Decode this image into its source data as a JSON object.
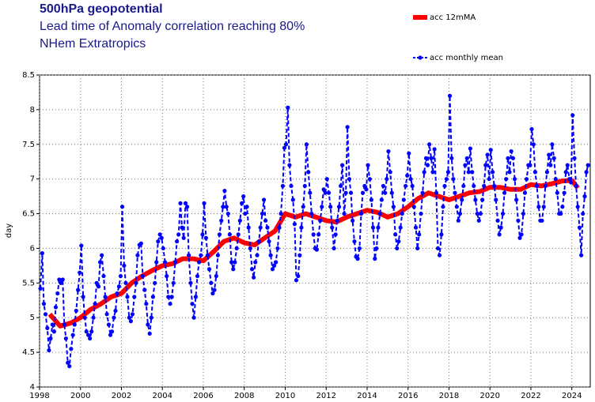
{
  "chart_data": {
    "type": "line",
    "title": "500hPa geopotential",
    "subtitle": [
      "Lead time of Anomaly correlation reaching 80%",
      "NHem Extratropics"
    ],
    "ylabel": "day",
    "xlim": [
      1998,
      2024.9
    ],
    "xticks": [
      1998,
      2000,
      2002,
      2004,
      2006,
      2008,
      2010,
      2012,
      2014,
      2016,
      2018,
      2020,
      2022,
      2024
    ],
    "ylim": [
      4,
      8.5
    ],
    "yticks": [
      4,
      4.5,
      5,
      5.5,
      6,
      6.5,
      7,
      7.5,
      8,
      8.5
    ],
    "grid": true,
    "series": [
      {
        "name": "acc 12mMA",
        "color": "#ff0000",
        "x": [
          1998.5,
          1999,
          1999.5,
          2000,
          2000.5,
          2001,
          2001.5,
          2002,
          2002.5,
          2003,
          2003.5,
          2004,
          2004.5,
          2005,
          2005.5,
          2006,
          2006.5,
          2007,
          2007.5,
          2008,
          2008.5,
          2009,
          2009.5,
          2010,
          2010.5,
          2011,
          2011.5,
          2012,
          2012.5,
          2013,
          2013.5,
          2014,
          2014.5,
          2015,
          2015.5,
          2016,
          2016.5,
          2017,
          2017.5,
          2018,
          2018.5,
          2019,
          2019.5,
          2020,
          2020.5,
          2021,
          2021.5,
          2022,
          2022.5,
          2023,
          2023.5,
          2024,
          2024.3
        ],
        "values": [
          5.05,
          4.88,
          4.92,
          5.0,
          5.12,
          5.2,
          5.3,
          5.35,
          5.5,
          5.6,
          5.68,
          5.75,
          5.78,
          5.85,
          5.85,
          5.82,
          5.95,
          6.1,
          6.15,
          6.08,
          6.05,
          6.15,
          6.25,
          6.5,
          6.45,
          6.5,
          6.45,
          6.4,
          6.38,
          6.45,
          6.5,
          6.55,
          6.52,
          6.45,
          6.5,
          6.6,
          6.72,
          6.8,
          6.75,
          6.7,
          6.75,
          6.8,
          6.82,
          6.88,
          6.88,
          6.85,
          6.85,
          6.92,
          6.9,
          6.93,
          6.97,
          6.98,
          6.87
        ]
      },
      {
        "name": "acc monthly mean",
        "color": "#0000ff",
        "x": [
          1998.04,
          1998.13,
          1998.21,
          1998.29,
          1998.38,
          1998.46,
          1998.54,
          1998.63,
          1998.71,
          1998.79,
          1998.88,
          1998.96,
          1999.04,
          1999.13,
          1999.21,
          1999.29,
          1999.38,
          1999.46,
          1999.54,
          1999.63,
          1999.71,
          1999.79,
          1999.88,
          1999.96,
          2000.04,
          2000.13,
          2000.21,
          2000.29,
          2000.38,
          2000.46,
          2000.54,
          2000.63,
          2000.71,
          2000.79,
          2000.88,
          2000.96,
          2001.04,
          2001.13,
          2001.21,
          2001.29,
          2001.38,
          2001.46,
          2001.54,
          2001.63,
          2001.71,
          2001.79,
          2001.88,
          2001.96,
          2002.04,
          2002.13,
          2002.21,
          2002.29,
          2002.38,
          2002.46,
          2002.54,
          2002.63,
          2002.71,
          2002.79,
          2002.88,
          2002.96,
          2003.04,
          2003.13,
          2003.21,
          2003.29,
          2003.38,
          2003.46,
          2003.54,
          2003.63,
          2003.71,
          2003.79,
          2003.88,
          2003.96,
          2004.04,
          2004.13,
          2004.21,
          2004.29,
          2004.38,
          2004.46,
          2004.54,
          2004.63,
          2004.71,
          2004.79,
          2004.88,
          2004.96,
          2005.04,
          2005.13,
          2005.21,
          2005.29,
          2005.38,
          2005.46,
          2005.54,
          2005.63,
          2005.71,
          2005.79,
          2005.88,
          2005.96,
          2006.04,
          2006.13,
          2006.21,
          2006.29,
          2006.38,
          2006.46,
          2006.54,
          2006.63,
          2006.71,
          2006.79,
          2006.88,
          2006.96,
          2007.04,
          2007.13,
          2007.21,
          2007.29,
          2007.38,
          2007.46,
          2007.54,
          2007.63,
          2007.71,
          2007.79,
          2007.88,
          2007.96,
          2008.04,
          2008.13,
          2008.21,
          2008.29,
          2008.38,
          2008.46,
          2008.54,
          2008.63,
          2008.71,
          2008.79,
          2008.88,
          2008.96,
          2009.04,
          2009.13,
          2009.21,
          2009.29,
          2009.38,
          2009.46,
          2009.54,
          2009.63,
          2009.71,
          2009.79,
          2009.88,
          2009.96,
          2010.04,
          2010.13,
          2010.21,
          2010.29,
          2010.38,
          2010.46,
          2010.54,
          2010.63,
          2010.71,
          2010.79,
          2010.88,
          2010.96,
          2011.04,
          2011.13,
          2011.21,
          2011.29,
          2011.38,
          2011.46,
          2011.54,
          2011.63,
          2011.71,
          2011.79,
          2011.88,
          2011.96,
          2012.04,
          2012.13,
          2012.21,
          2012.29,
          2012.38,
          2012.46,
          2012.54,
          2012.63,
          2012.71,
          2012.79,
          2012.88,
          2012.96,
          2013.04,
          2013.13,
          2013.21,
          2013.29,
          2013.38,
          2013.46,
          2013.54,
          2013.63,
          2013.71,
          2013.79,
          2013.88,
          2013.96,
          2014.04,
          2014.13,
          2014.21,
          2014.29,
          2014.38,
          2014.46,
          2014.54,
          2014.63,
          2014.71,
          2014.79,
          2014.88,
          2014.96,
          2015.04,
          2015.13,
          2015.21,
          2015.29,
          2015.38,
          2015.46,
          2015.54,
          2015.63,
          2015.71,
          2015.79,
          2015.88,
          2015.96,
          2016.04,
          2016.13,
          2016.21,
          2016.29,
          2016.38,
          2016.46,
          2016.54,
          2016.63,
          2016.71,
          2016.79,
          2016.88,
          2016.96,
          2017.04,
          2017.13,
          2017.21,
          2017.29,
          2017.38,
          2017.46,
          2017.54,
          2017.63,
          2017.71,
          2017.79,
          2017.88,
          2017.96,
          2018.04,
          2018.13,
          2018.21,
          2018.29,
          2018.38,
          2018.46,
          2018.54,
          2018.63,
          2018.71,
          2018.79,
          2018.88,
          2018.96,
          2019.04,
          2019.13,
          2019.21,
          2019.29,
          2019.38,
          2019.46,
          2019.54,
          2019.63,
          2019.71,
          2019.79,
          2019.88,
          2019.96,
          2020.04,
          2020.13,
          2020.21,
          2020.29,
          2020.38,
          2020.46,
          2020.54,
          2020.63,
          2020.71,
          2020.79,
          2020.88,
          2020.96,
          2021.04,
          2021.13,
          2021.21,
          2021.29,
          2021.38,
          2021.46,
          2021.54,
          2021.63,
          2021.71,
          2021.79,
          2021.88,
          2021.96,
          2022.04,
          2022.13,
          2022.21,
          2022.29,
          2022.38,
          2022.46,
          2022.54,
          2022.63,
          2022.71,
          2022.79,
          2022.88,
          2022.96,
          2023.04,
          2023.13,
          2023.21,
          2023.29,
          2023.38,
          2023.46,
          2023.54,
          2023.63,
          2023.71,
          2023.79,
          2023.88,
          2023.96,
          2024.04,
          2024.13,
          2024.21,
          2024.29,
          2024.38,
          2024.46,
          2024.54,
          2024.63,
          2024.71,
          2024.79
        ],
        "values": [
          5.42,
          5.93,
          5.2,
          5.05,
          4.85,
          4.53,
          4.7,
          4.9,
          4.8,
          5.15,
          5.35,
          5.55,
          5.5,
          5.55,
          4.9,
          4.7,
          4.35,
          4.3,
          4.55,
          4.75,
          4.9,
          5.1,
          5.4,
          5.65,
          6.04,
          5.3,
          5.0,
          4.8,
          4.75,
          4.7,
          4.8,
          5.0,
          5.2,
          5.5,
          5.45,
          5.8,
          5.9,
          5.6,
          5.3,
          5.05,
          4.9,
          4.75,
          4.8,
          5.0,
          5.1,
          5.35,
          5.45,
          5.6,
          6.6,
          5.75,
          5.5,
          5.3,
          5.0,
          4.95,
          5.05,
          5.3,
          5.5,
          5.9,
          6.05,
          6.07,
          5.6,
          5.4,
          5.2,
          4.9,
          4.77,
          5.0,
          5.3,
          5.5,
          5.8,
          6.1,
          6.2,
          6.15,
          6.0,
          5.8,
          5.6,
          5.3,
          5.2,
          5.3,
          5.5,
          5.8,
          6.1,
          6.2,
          6.65,
          6.3,
          6.15,
          6.65,
          6.6,
          5.9,
          5.5,
          5.2,
          5.0,
          5.3,
          5.6,
          5.8,
          5.9,
          6.2,
          6.65,
          6.15,
          5.9,
          5.7,
          5.5,
          5.35,
          5.4,
          5.6,
          5.9,
          6.2,
          6.4,
          6.6,
          6.83,
          6.6,
          6.5,
          6.2,
          5.8,
          5.7,
          5.8,
          6.0,
          6.2,
          6.4,
          6.65,
          6.75,
          6.5,
          6.6,
          6.3,
          6.0,
          5.7,
          5.58,
          5.8,
          5.9,
          6.1,
          6.3,
          6.5,
          6.7,
          6.4,
          6.3,
          6.1,
          5.9,
          5.7,
          5.75,
          5.8,
          6.0,
          6.3,
          6.5,
          6.9,
          7.45,
          7.5,
          8.03,
          7.2,
          6.9,
          6.7,
          6.35,
          5.54,
          5.6,
          5.9,
          6.3,
          6.6,
          6.9,
          7.5,
          7.1,
          6.8,
          6.5,
          6.2,
          6.0,
          5.98,
          6.2,
          6.4,
          6.6,
          6.85,
          6.8,
          7.0,
          6.8,
          6.6,
          6.3,
          6.0,
          6.2,
          6.4,
          6.6,
          6.9,
          7.2,
          6.5,
          6.8,
          7.75,
          7.0,
          6.8,
          6.4,
          6.1,
          5.88,
          5.85,
          6.0,
          6.5,
          6.8,
          6.9,
          6.85,
          7.2,
          7.0,
          6.7,
          6.3,
          5.85,
          6.0,
          6.3,
          6.5,
          6.7,
          6.9,
          6.8,
          7.0,
          7.4,
          7.1,
          6.8,
          6.6,
          6.2,
          6.0,
          6.1,
          6.3,
          6.5,
          6.7,
          6.9,
          7.05,
          7.37,
          7.0,
          6.9,
          6.6,
          6.3,
          6.0,
          6.2,
          6.5,
          6.8,
          7.1,
          7.3,
          7.2,
          7.5,
          7.3,
          7.1,
          7.43,
          6.8,
          6.0,
          5.9,
          6.2,
          6.6,
          6.9,
          7.0,
          7.1,
          8.2,
          7.3,
          7.0,
          6.8,
          6.6,
          6.4,
          6.5,
          6.7,
          6.9,
          7.2,
          7.3,
          7.1,
          7.44,
          7.1,
          6.9,
          6.7,
          6.5,
          6.4,
          6.5,
          6.7,
          6.9,
          7.2,
          7.35,
          7.0,
          7.42,
          7.1,
          6.9,
          6.7,
          6.4,
          6.2,
          6.3,
          6.5,
          6.8,
          7.0,
          7.3,
          7.1,
          7.4,
          7.3,
          7.0,
          6.7,
          6.4,
          6.15,
          6.2,
          6.5,
          6.8,
          7.0,
          7.2,
          7.2,
          7.72,
          7.5,
          7.1,
          6.9,
          6.6,
          6.4,
          6.4,
          6.6,
          6.9,
          7.1,
          7.35,
          7.2,
          7.5,
          7.3,
          7.0,
          6.8,
          6.5,
          6.5,
          6.6,
          6.8,
          7.1,
          7.2,
          7.0,
          6.95,
          7.92,
          7.3,
          6.9,
          6.6,
          6.3,
          5.9,
          6.5,
          6.75,
          7.1,
          7.2
        ]
      }
    ]
  }
}
